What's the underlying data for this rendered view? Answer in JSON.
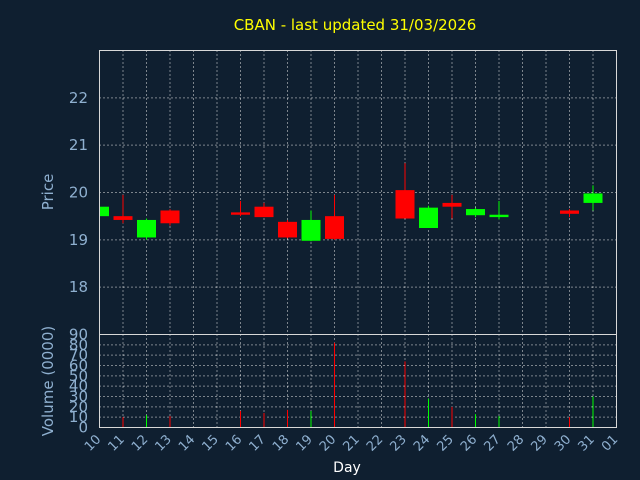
{
  "title": "CBAN - last updated 31/03/2026",
  "chart_data": {
    "type": "candlestick",
    "title": "CBAN - last updated 31/03/2026",
    "xlabel": "Day",
    "price_ylabel": "Price",
    "volume_ylabel": "Volume (0000)",
    "price_ylim": [
      17,
      23
    ],
    "price_ticks": [
      18,
      19,
      20,
      21,
      22
    ],
    "volume_ylim": [
      0,
      90
    ],
    "volume_ticks": [
      0,
      10,
      20,
      30,
      40,
      50,
      60,
      70,
      80,
      90
    ],
    "x_ticks": [
      "10",
      "11",
      "12",
      "13",
      "14",
      "15",
      "16",
      "17",
      "18",
      "19",
      "20",
      "21",
      "22",
      "23",
      "24",
      "25",
      "26",
      "27",
      "28",
      "29",
      "30",
      "31",
      "01"
    ],
    "up_color": "#00ff00",
    "down_color": "#ff0000",
    "grid": true,
    "candles": [
      {
        "day": "10",
        "open": 19.5,
        "high": 19.7,
        "low": 19.5,
        "close": 19.7,
        "volume": 0
      },
      {
        "day": "11",
        "open": 19.5,
        "high": 19.95,
        "low": 19.35,
        "close": 19.42,
        "volume": 10
      },
      {
        "day": "12",
        "open": 19.05,
        "high": 19.45,
        "low": 19.0,
        "close": 19.42,
        "volume": 12
      },
      {
        "day": "13",
        "open": 19.62,
        "high": 19.65,
        "low": 19.3,
        "close": 19.35,
        "volume": 11
      },
      {
        "day": "16",
        "open": 19.58,
        "high": 19.82,
        "low": 19.5,
        "close": 19.53,
        "volume": 16
      },
      {
        "day": "17",
        "open": 19.7,
        "high": 19.78,
        "low": 19.48,
        "close": 19.48,
        "volume": 14
      },
      {
        "day": "18",
        "open": 19.38,
        "high": 19.42,
        "low": 19.03,
        "close": 19.05,
        "volume": 17
      },
      {
        "day": "19",
        "open": 18.98,
        "high": 19.62,
        "low": 18.97,
        "close": 19.42,
        "volume": 16
      },
      {
        "day": "20",
        "open": 19.5,
        "high": 19.95,
        "low": 19.0,
        "close": 19.02,
        "volume": 82
      },
      {
        "day": "23",
        "open": 20.05,
        "high": 20.62,
        "low": 19.45,
        "close": 19.45,
        "volume": 64
      },
      {
        "day": "24",
        "open": 19.25,
        "high": 19.72,
        "low": 19.25,
        "close": 19.68,
        "volume": 28
      },
      {
        "day": "25",
        "open": 19.78,
        "high": 19.95,
        "low": 19.45,
        "close": 19.7,
        "volume": 20
      },
      {
        "day": "26",
        "open": 19.52,
        "high": 19.68,
        "low": 19.48,
        "close": 19.65,
        "volume": 13
      },
      {
        "day": "27",
        "open": 19.48,
        "high": 19.82,
        "low": 19.43,
        "close": 19.53,
        "volume": 11
      },
      {
        "day": "30",
        "open": 19.62,
        "high": 19.65,
        "low": 19.48,
        "close": 19.55,
        "volume": 10
      },
      {
        "day": "31",
        "open": 19.78,
        "high": 20.15,
        "low": 19.62,
        "close": 19.98,
        "volume": 30
      }
    ]
  }
}
